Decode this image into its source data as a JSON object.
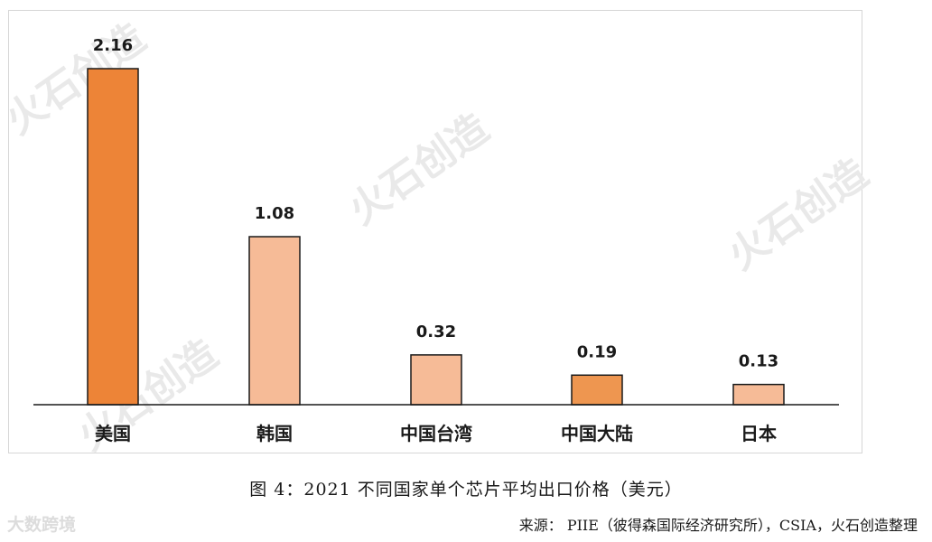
{
  "chart_data": {
    "type": "bar",
    "categories": [
      "美国",
      "韩国",
      "中国台湾",
      "中国大陆",
      "日本"
    ],
    "values": [
      2.16,
      1.08,
      0.32,
      0.19,
      0.13
    ],
    "value_labels": [
      "2.16",
      "1.08",
      "0.32",
      "0.19",
      "0.13"
    ],
    "ylim": [
      0,
      2.16
    ],
    "grid": false,
    "legend": "none",
    "colors": [
      "#ed8437",
      "#f6bb97",
      "#f6bb97",
      "#ee9650",
      "#f6bb97"
    ],
    "bar_border": "#1a1a1a"
  },
  "caption": "图 4：2021 不同国家单个芯片平均出口价格（美元）",
  "source": "来源：  PIIE（彼得森国际经济研究所），CSIA，火石创造整理",
  "watermark": "火石创造",
  "corner_watermark": "大数跨境"
}
